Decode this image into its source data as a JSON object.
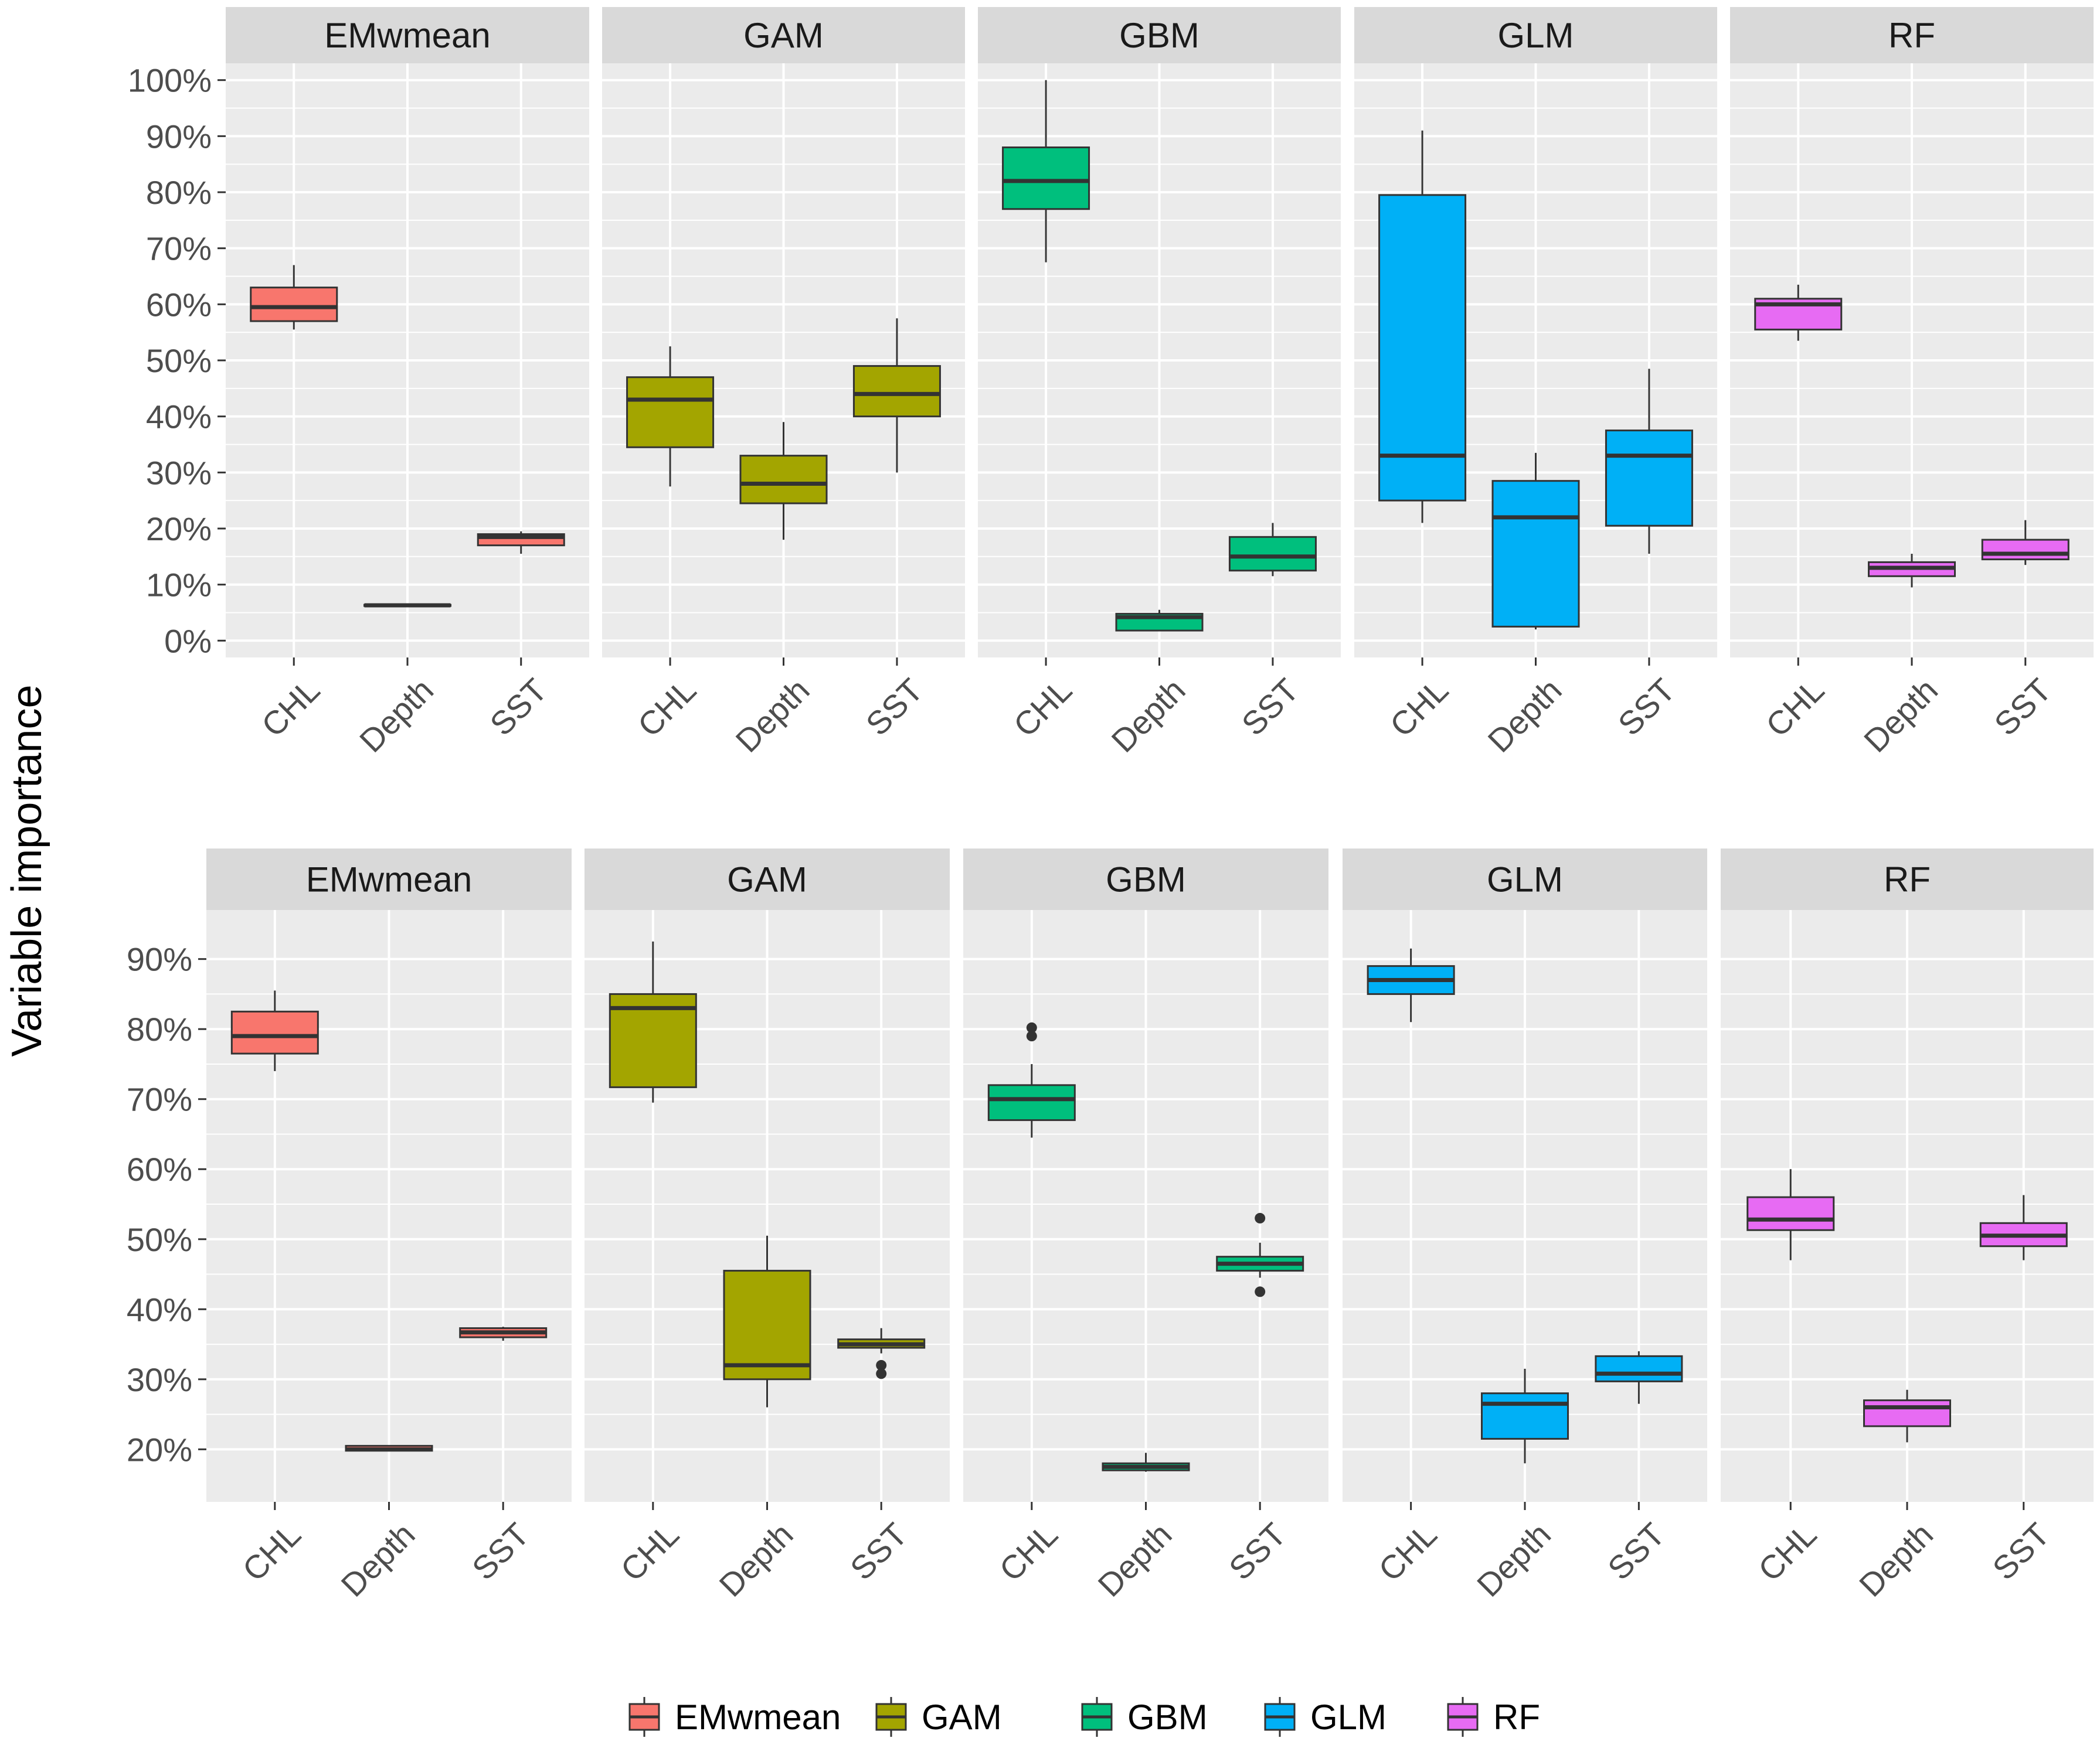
{
  "y_axis_title": "Variable importance",
  "legend": {
    "items": [
      {
        "label": "EMwmean",
        "color": "#F8766D"
      },
      {
        "label": "GAM",
        "color": "#A3A500"
      },
      {
        "label": "GBM",
        "color": "#00BF7D"
      },
      {
        "label": "GLM",
        "color": "#00B0F6"
      },
      {
        "label": "RF",
        "color": "#E76BF3"
      }
    ]
  },
  "chart_data": [
    {
      "type": "boxplot",
      "title": "",
      "ylabel": "Variable importance",
      "ylim": [
        -3,
        103
      ],
      "ytick_values": [
        0,
        10,
        20,
        30,
        40,
        50,
        60,
        70,
        80,
        90,
        100
      ],
      "ytick_labels": [
        "0%",
        "10%",
        "20%",
        "30%",
        "40%",
        "50%",
        "60%",
        "70%",
        "80%",
        "90%",
        "100%"
      ],
      "categories": [
        "CHL",
        "Depth",
        "SST"
      ],
      "panels": [
        {
          "name": "EMwmean",
          "color": "#F8766D",
          "boxes": [
            {
              "category": "CHL",
              "whisker_low": 55.5,
              "q1": 57,
              "median": 59.5,
              "q3": 63,
              "whisker_high": 67,
              "outliers": []
            },
            {
              "category": "Depth",
              "whisker_low": 6.2,
              "q1": 6.2,
              "median": 6.3,
              "q3": 6.4,
              "whisker_high": 6.4,
              "outliers": []
            },
            {
              "category": "SST",
              "whisker_low": 15.5,
              "q1": 17,
              "median": 18.5,
              "q3": 19,
              "whisker_high": 19.5,
              "outliers": []
            }
          ]
        },
        {
          "name": "GAM",
          "color": "#A3A500",
          "boxes": [
            {
              "category": "CHL",
              "whisker_low": 27.5,
              "q1": 34.5,
              "median": 43,
              "q3": 47,
              "whisker_high": 52.5,
              "outliers": []
            },
            {
              "category": "Depth",
              "whisker_low": 18,
              "q1": 24.5,
              "median": 28,
              "q3": 33,
              "whisker_high": 39,
              "outliers": []
            },
            {
              "category": "SST",
              "whisker_low": 30,
              "q1": 40,
              "median": 44,
              "q3": 49,
              "whisker_high": 57.5,
              "outliers": []
            }
          ]
        },
        {
          "name": "GBM",
          "color": "#00BF7D",
          "boxes": [
            {
              "category": "CHL",
              "whisker_low": 67.5,
              "q1": 77,
              "median": 82,
              "q3": 88,
              "whisker_high": 100,
              "outliers": []
            },
            {
              "category": "Depth",
              "whisker_low": 1.8,
              "q1": 1.8,
              "median": 4.2,
              "q3": 4.8,
              "whisker_high": 5.5,
              "outliers": []
            },
            {
              "category": "SST",
              "whisker_low": 11.5,
              "q1": 12.5,
              "median": 15,
              "q3": 18.5,
              "whisker_high": 21,
              "outliers": []
            }
          ]
        },
        {
          "name": "GLM",
          "color": "#00B0F6",
          "boxes": [
            {
              "category": "CHL",
              "whisker_low": 21,
              "q1": 25,
              "median": 33,
              "q3": 79.5,
              "whisker_high": 91,
              "outliers": []
            },
            {
              "category": "Depth",
              "whisker_low": 2,
              "q1": 2.5,
              "median": 22,
              "q3": 28.5,
              "whisker_high": 33.5,
              "outliers": []
            },
            {
              "category": "SST",
              "whisker_low": 15.5,
              "q1": 20.5,
              "median": 33,
              "q3": 37.5,
              "whisker_high": 48.5,
              "outliers": []
            }
          ]
        },
        {
          "name": "RF",
          "color": "#E76BF3",
          "boxes": [
            {
              "category": "CHL",
              "whisker_low": 53.5,
              "q1": 55.5,
              "median": 60,
              "q3": 61,
              "whisker_high": 63.5,
              "outliers": []
            },
            {
              "category": "Depth",
              "whisker_low": 9.5,
              "q1": 11.5,
              "median": 13,
              "q3": 14,
              "whisker_high": 15.5,
              "outliers": []
            },
            {
              "category": "SST",
              "whisker_low": 13.5,
              "q1": 14.5,
              "median": 15.5,
              "q3": 18,
              "whisker_high": 21.5,
              "outliers": []
            }
          ]
        }
      ]
    },
    {
      "type": "boxplot",
      "title": "",
      "ylabel": "Variable importance",
      "ylim": [
        12.5,
        97
      ],
      "ytick_values": [
        20,
        30,
        40,
        50,
        60,
        70,
        80,
        90
      ],
      "ytick_labels": [
        "20%",
        "30%",
        "40%",
        "50%",
        "60%",
        "70%",
        "80%",
        "90%"
      ],
      "categories": [
        "CHL",
        "Depth",
        "SST"
      ],
      "panels": [
        {
          "name": "EMwmean",
          "color": "#F8766D",
          "boxes": [
            {
              "category": "CHL",
              "whisker_low": 74,
              "q1": 76.5,
              "median": 79,
              "q3": 82.5,
              "whisker_high": 85.5,
              "outliers": []
            },
            {
              "category": "Depth",
              "whisker_low": 19.8,
              "q1": 19.8,
              "median": 20,
              "q3": 20.5,
              "whisker_high": 20.5,
              "outliers": []
            },
            {
              "category": "SST",
              "whisker_low": 35.5,
              "q1": 36,
              "median": 36.7,
              "q3": 37.3,
              "whisker_high": 37.5,
              "outliers": []
            }
          ]
        },
        {
          "name": "GAM",
          "color": "#A3A500",
          "boxes": [
            {
              "category": "CHL",
              "whisker_low": 69.5,
              "q1": 71.7,
              "median": 83,
              "q3": 85,
              "whisker_high": 92.5,
              "outliers": []
            },
            {
              "category": "Depth",
              "whisker_low": 26,
              "q1": 30,
              "median": 32,
              "q3": 45.5,
              "whisker_high": 50.5,
              "outliers": []
            },
            {
              "category": "SST",
              "whisker_low": 33.7,
              "q1": 34.5,
              "median": 35,
              "q3": 35.7,
              "whisker_high": 37.3,
              "outliers": [
                32,
                30.8
              ]
            }
          ]
        },
        {
          "name": "GBM",
          "color": "#00BF7D",
          "boxes": [
            {
              "category": "CHL",
              "whisker_low": 64.5,
              "q1": 67,
              "median": 70,
              "q3": 72,
              "whisker_high": 75,
              "outliers": [
                80.2,
                79
              ]
            },
            {
              "category": "Depth",
              "whisker_low": 16.8,
              "q1": 17,
              "median": 17.5,
              "q3": 18,
              "whisker_high": 19.5,
              "outliers": []
            },
            {
              "category": "SST",
              "whisker_low": 44.5,
              "q1": 45.5,
              "median": 46.5,
              "q3": 47.5,
              "whisker_high": 49.5,
              "outliers": [
                53,
                42.5
              ]
            }
          ]
        },
        {
          "name": "GLM",
          "color": "#00B0F6",
          "boxes": [
            {
              "category": "CHL",
              "whisker_low": 81,
              "q1": 85,
              "median": 87,
              "q3": 89,
              "whisker_high": 91.5,
              "outliers": []
            },
            {
              "category": "Depth",
              "whisker_low": 18,
              "q1": 21.5,
              "median": 26.5,
              "q3": 28,
              "whisker_high": 31.5,
              "outliers": []
            },
            {
              "category": "SST",
              "whisker_low": 26.5,
              "q1": 29.7,
              "median": 30.8,
              "q3": 33.3,
              "whisker_high": 34,
              "outliers": []
            }
          ]
        },
        {
          "name": "RF",
          "color": "#E76BF3",
          "boxes": [
            {
              "category": "CHL",
              "whisker_low": 47,
              "q1": 51.3,
              "median": 52.8,
              "q3": 56,
              "whisker_high": 60,
              "outliers": []
            },
            {
              "category": "Depth",
              "whisker_low": 21,
              "q1": 23.3,
              "median": 26,
              "q3": 27,
              "whisker_high": 28.5,
              "outliers": []
            },
            {
              "category": "SST",
              "whisker_low": 47,
              "q1": 49,
              "median": 50.5,
              "q3": 52.3,
              "whisker_high": 56.3,
              "outliers": []
            }
          ]
        }
      ]
    }
  ]
}
